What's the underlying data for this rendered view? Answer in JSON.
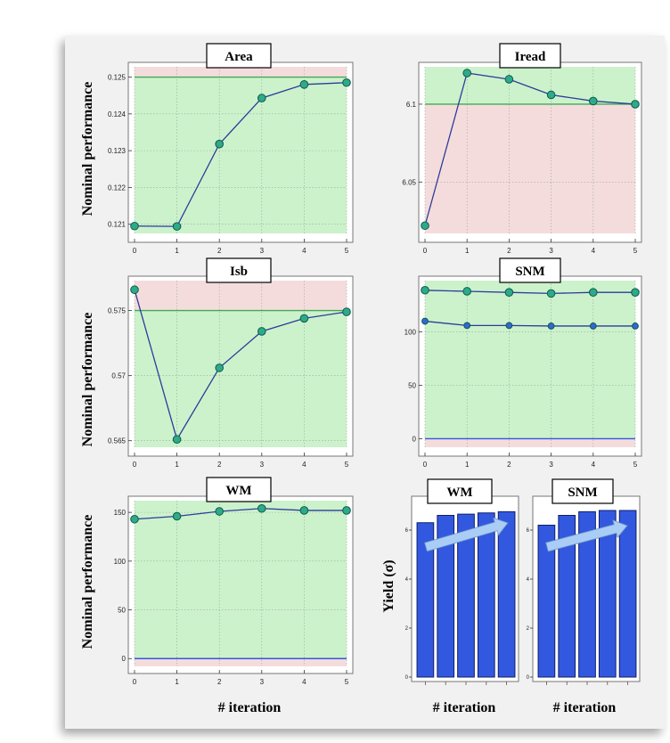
{
  "labels": {
    "y_nominal": "Nominal performance",
    "y_yield": "Yield (σ)",
    "x_iteration": "# iteration"
  },
  "colors": {
    "pass_fill": "#ccf2cc",
    "fail_fill": "#f5dcdc",
    "spec_line": "#3faa55",
    "marker_fill": "#2eaa88",
    "marker_stroke": "#0e5a4c",
    "series_line": "#2b3c9a",
    "series_blue_marker": "#3566d8",
    "bar_fill": "#3358e0",
    "bar_stroke": "#0f1f6a",
    "zero_line": "#3456e0",
    "arrow_fill": "#a9cdf5"
  },
  "chart_data": [
    {
      "type": "line",
      "title": "Area",
      "x": [
        0,
        1,
        2,
        3,
        4,
        5
      ],
      "series": [
        {
          "values": [
            0.12095,
            0.12094,
            0.12318,
            0.12443,
            0.1248,
            0.12485
          ]
        }
      ],
      "spec": 0.125,
      "pass_region": "below",
      "xlim": [
        0,
        5
      ],
      "ylim": [
        0.12075,
        0.12528
      ],
      "yticks": [
        0.121,
        0.122,
        0.123,
        0.124,
        0.125
      ],
      "ytick_labels": [
        "0.121",
        "0.122",
        "0.123",
        "0.124",
        "0.125"
      ],
      "xtick_labels": [
        "0",
        "1",
        "2",
        "3",
        "4",
        "5"
      ],
      "grid": true
    },
    {
      "type": "line",
      "title": "Iread",
      "x": [
        0,
        1,
        2,
        3,
        4,
        5
      ],
      "series": [
        {
          "values": [
            6.022,
            6.12,
            6.116,
            6.106,
            6.102,
            6.1
          ]
        }
      ],
      "spec": 6.1,
      "pass_region": "above",
      "xlim": [
        0,
        5
      ],
      "ylim": [
        6.017,
        6.124
      ],
      "yticks": [
        6.05,
        6.1
      ],
      "ytick_labels": [
        "6.05",
        "6.1"
      ],
      "xtick_labels": [
        "0",
        "1",
        "2",
        "3",
        "4",
        "5"
      ],
      "grid": true
    },
    {
      "type": "line",
      "title": "Isb",
      "x": [
        0,
        1,
        2,
        3,
        4,
        5
      ],
      "series": [
        {
          "values": [
            0.5766,
            0.5651,
            0.5706,
            0.5734,
            0.5744,
            0.5749
          ]
        }
      ],
      "spec": 0.575,
      "pass_region": "below",
      "xlim": [
        0,
        5
      ],
      "ylim": [
        0.5645,
        0.5773
      ],
      "yticks": [
        0.565,
        0.57,
        0.575
      ],
      "ytick_labels": [
        "0.565",
        "0.57",
        "0.575"
      ],
      "xtick_labels": [
        "0",
        "1",
        "2",
        "3",
        "4",
        "5"
      ],
      "grid": true
    },
    {
      "type": "line",
      "title": "SNM",
      "x": [
        0,
        1,
        2,
        3,
        4,
        5
      ],
      "series": [
        {
          "values": [
            139,
            138,
            137,
            136,
            137,
            137
          ]
        },
        {
          "values": [
            110,
            106,
            106,
            105.5,
            105.5,
            105.5
          ]
        }
      ],
      "spec": 0,
      "pass_region": "above",
      "xlim": [
        0,
        5
      ],
      "ylim": [
        -8,
        148
      ],
      "yticks": [
        0,
        50,
        100
      ],
      "ytick_labels": [
        "0",
        "50",
        "100"
      ],
      "xtick_labels": [
        "0",
        "1",
        "2",
        "3",
        "4",
        "5"
      ],
      "grid": true
    },
    {
      "type": "line",
      "title": "WM",
      "x": [
        0,
        1,
        2,
        3,
        4,
        5
      ],
      "series": [
        {
          "values": [
            143,
            146,
            151,
            154,
            152,
            152
          ]
        }
      ],
      "spec": 0,
      "pass_region": "above",
      "xlim": [
        0,
        5
      ],
      "ylim": [
        -8,
        162
      ],
      "yticks": [
        0,
        50,
        100,
        150
      ],
      "ytick_labels": [
        "0",
        "50",
        "100",
        "150"
      ],
      "xtick_labels": [
        "0",
        "1",
        "2",
        "3",
        "4",
        "5"
      ],
      "grid": true
    },
    {
      "type": "bar",
      "title": "WM",
      "categories": [
        "",
        "",
        "",
        "",
        ""
      ],
      "values": [
        6.3,
        6.6,
        6.65,
        6.7,
        6.75
      ],
      "ylim": [
        0,
        7.2
      ],
      "yticks": [
        0,
        2,
        4,
        6
      ],
      "ytick_labels": [
        "0",
        "2",
        "4",
        "6"
      ],
      "grid": false
    },
    {
      "type": "bar",
      "title": "SNM",
      "categories": [
        "",
        "",
        "",
        "",
        ""
      ],
      "values": [
        6.2,
        6.6,
        6.75,
        6.8,
        6.8
      ],
      "ylim": [
        0,
        7.2
      ],
      "yticks": [
        0,
        2,
        4,
        6
      ],
      "ytick_labels": [
        "0",
        "2",
        "4",
        "6"
      ],
      "grid": false
    }
  ]
}
